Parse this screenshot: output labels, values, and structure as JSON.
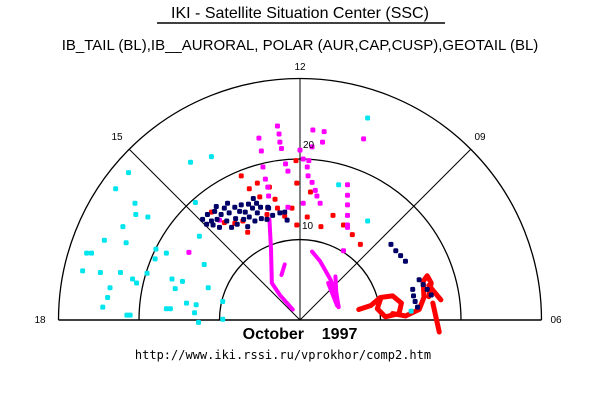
{
  "title": "IKI - Satellite Situation Center (SSC)",
  "legend": [
    {
      "text": "IB_TAIL",
      "color": "#ff0000"
    },
    {
      "text": " (BL),",
      "color": "#000000"
    },
    {
      "text": "IB__AURORAL, ",
      "color": "#00e5ee"
    },
    {
      "text": "POLAR",
      "color": "#ff00ff"
    },
    {
      "text": " (AUR,CAP,CUSP),",
      "color": "#000000"
    },
    {
      "text": "GEOTAIL",
      "color": "#000066"
    },
    {
      "text": " (BL)",
      "color": "#000000"
    }
  ],
  "date_label": "October    1997",
  "url": "http://www.iki.rssi.ru/vprokhor/comp2.htm",
  "chart_data": {
    "type": "scatter",
    "projection": "polar-half (cartesian chart units, x toward 06 MLT, y toward 12 MLT)",
    "mlt_labels": {
      "left": "18",
      "upper_left": "15",
      "top": "12",
      "upper_right": "09",
      "right": "06"
    },
    "radial_labels": [
      "10",
      "20"
    ],
    "rings": [
      10,
      20,
      30
    ],
    "series": [
      {
        "name": "IB_TAIL",
        "color": "#ff0000",
        "points": [
          [
            -7.3,
            17.9
          ],
          [
            -5.3,
            17
          ],
          [
            -6.3,
            16.3
          ],
          [
            -3.8,
            16.5
          ],
          [
            -5,
            15.3
          ],
          [
            -3.1,
            15
          ],
          [
            -0.4,
            17
          ],
          [
            -4,
            13.9
          ],
          [
            -1,
            13.9
          ],
          [
            -2.8,
            13.9
          ],
          [
            -4.1,
            13.1
          ],
          [
            -1.9,
            12.9
          ],
          [
            -9.4,
            12.1
          ],
          [
            -8.1,
            12
          ],
          [
            -7.1,
            12.3
          ],
          [
            -6.5,
            10.9
          ],
          [
            -0.4,
            11.8
          ],
          [
            -11,
            13.4
          ],
          [
            1.3,
            15.9
          ],
          [
            0.9,
            12.8
          ],
          [
            4.1,
            13
          ],
          [
            2.6,
            11.6
          ],
          [
            5.4,
            11.8
          ],
          [
            6.5,
            10.6
          ],
          [
            7.5,
            9.4
          ],
          [
            -0.5,
            19.8
          ]
        ],
        "tracks": [
          [
            [
              7.3,
              1.3
            ],
            [
              8.8,
              1.8
            ],
            [
              10,
              2.8
            ],
            [
              11.5,
              3
            ],
            [
              12.6,
              2.1
            ],
            [
              12.3,
              0.8
            ],
            [
              10.6,
              0.4
            ],
            [
              9.6,
              1.4
            ],
            [
              10,
              2.6
            ]
          ],
          [
            [
              11.5,
              0.8
            ],
            [
              13.1,
              0.5
            ],
            [
              14.8,
              1.3
            ],
            [
              15.4,
              2.8
            ],
            [
              15.3,
              4.8
            ],
            [
              15.8,
              5.5
            ],
            [
              16.3,
              4.6
            ],
            [
              16,
              2.9
            ]
          ],
          [
            [
              16,
              4.3
            ],
            [
              17.5,
              2.5
            ]
          ],
          [
            [
              16.5,
              2.1
            ],
            [
              17.3,
              -1.5
            ]
          ]
        ]
      },
      {
        "name": "IB__AURORAL",
        "color": "#00e5ee",
        "points": [
          [
            -13.6,
            19.6
          ],
          [
            -11,
            20.3
          ],
          [
            -21.3,
            18.3
          ],
          [
            -22.9,
            16.3
          ],
          [
            -20.5,
            14.5
          ],
          [
            -20.4,
            13.1
          ],
          [
            -18.9,
            12.8
          ],
          [
            -22,
            11.6
          ],
          [
            -13,
            14.6
          ],
          [
            -24.3,
            9.9
          ],
          [
            -21.6,
            9.6
          ],
          [
            -12.5,
            10.4
          ],
          [
            -26.5,
            8.3
          ],
          [
            -25.9,
            8.3
          ],
          [
            -17.9,
            8.8
          ],
          [
            -18,
            7.6
          ],
          [
            -16.6,
            8.3
          ],
          [
            -11.9,
            6.9
          ],
          [
            -27,
            6.1
          ],
          [
            -24.8,
            5.9
          ],
          [
            -22.3,
            5.9
          ],
          [
            -19,
            5.8
          ],
          [
            -20.8,
            5.1
          ],
          [
            -20.3,
            4.6
          ],
          [
            -15.9,
            5.1
          ],
          [
            -14.6,
            4.8
          ],
          [
            -23.6,
            4
          ],
          [
            -15.5,
            3.9
          ],
          [
            -11.4,
            4
          ],
          [
            -23.9,
            2.8
          ],
          [
            -24.5,
            1.6
          ],
          [
            -14.1,
            2.1
          ],
          [
            -12.9,
            1.9
          ],
          [
            -16.6,
            1.4
          ],
          [
            -16.1,
            1.4
          ],
          [
            -13.1,
            0.9
          ],
          [
            -9.6,
            2.3
          ],
          [
            -21.5,
            0.6
          ],
          [
            -21.1,
            0.6
          ],
          [
            -12.6,
            -0.3
          ],
          [
            -9.6,
            0.1
          ],
          [
            8.4,
            25.1
          ],
          [
            4.8,
            16.8
          ],
          [
            8.4,
            12.3
          ],
          [
            13.8,
            1.1
          ]
        ],
        "tracks": []
      },
      {
        "name": "POLAR",
        "color": "#ff00ff",
        "points": [
          [
            -2.8,
            24.1
          ],
          [
            -2.6,
            23.1
          ],
          [
            -2.5,
            22.1
          ],
          [
            -5.1,
            22.6
          ],
          [
            -4.8,
            21
          ],
          [
            -2.3,
            21.3
          ],
          [
            -4.6,
            19
          ],
          [
            -1.8,
            19.4
          ],
          [
            -1.5,
            18.5
          ],
          [
            -4.3,
            17.5
          ],
          [
            -4,
            16.5
          ],
          [
            -3.9,
            15.4
          ],
          [
            -1.5,
            14
          ],
          [
            -10,
            12.4
          ],
          [
            -13.8,
            8.4
          ],
          [
            1.6,
            23.6
          ],
          [
            3,
            23.4
          ],
          [
            2.8,
            22.1
          ],
          [
            1.5,
            21.5
          ],
          [
            0,
            21.1
          ],
          [
            0.4,
            20
          ],
          [
            1.1,
            19.8
          ],
          [
            0.9,
            19
          ],
          [
            1,
            17.9
          ],
          [
            1.5,
            17.1
          ],
          [
            1.9,
            16.1
          ],
          [
            2.1,
            15.4
          ],
          [
            0.4,
            14.5
          ],
          [
            2.5,
            14.5
          ],
          [
            7.9,
            22.5
          ],
          [
            5.4,
            8.6
          ],
          [
            5.9,
            16.8
          ],
          [
            5.9,
            15.5
          ],
          [
            5.9,
            14.3
          ],
          [
            5.9,
            13
          ],
          [
            5.9,
            11.8
          ],
          [
            5.9,
            11.5
          ]
        ],
        "tracks": [
          [
            [
              -3.8,
              12.5
            ],
            [
              -3.6,
              8.8
            ],
            [
              -3.5,
              4.6
            ],
            [
              -2.5,
              3.1
            ],
            [
              -0.9,
              1.3
            ]
          ],
          [
            [
              -1.9,
              6.9
            ],
            [
              -2.3,
              5.6
            ]
          ],
          [
            [
              1.5,
              8.5
            ],
            [
              2.5,
              7.3
            ],
            [
              3.8,
              5
            ],
            [
              4.4,
              3.5
            ],
            [
              4.8,
              1.6
            ]
          ],
          [
            [
              4.4,
              5.4
            ],
            [
              4.5,
              3.5
            ],
            [
              4.8,
              1.6
            ]
          ],
          [
            [
              3.5,
              4.6
            ],
            [
              4.6,
              1.8
            ]
          ]
        ]
      },
      {
        "name": "GEOTAIL",
        "color": "#000066",
        "points": [
          [
            -12.1,
            12.5
          ],
          [
            -11.5,
            13.1
          ],
          [
            -11,
            12.3
          ],
          [
            -10.6,
            13.5
          ],
          [
            -10.3,
            12.5
          ],
          [
            -10,
            11.5
          ],
          [
            -9.8,
            13.1
          ],
          [
            -9.4,
            13.9
          ],
          [
            -9.1,
            12.3
          ],
          [
            -8.8,
            13.3
          ],
          [
            -8.5,
            11.5
          ],
          [
            -8.1,
            14
          ],
          [
            -8,
            12.6
          ],
          [
            -7.5,
            13.5
          ],
          [
            -7.3,
            14.3
          ],
          [
            -7,
            12.5
          ],
          [
            -6.8,
            13.4
          ],
          [
            -6.4,
            14.4
          ],
          [
            -6.3,
            12.8
          ],
          [
            -5.9,
            13.9
          ],
          [
            -5.6,
            12.3
          ],
          [
            -5.4,
            14.5
          ],
          [
            -5.3,
            13.3
          ],
          [
            -4.9,
            14
          ],
          [
            -4.8,
            12.6
          ],
          [
            -5.8,
            15.1
          ],
          [
            -10.8,
            11.8
          ],
          [
            -11.6,
            11.9
          ],
          [
            -9,
            14.5
          ],
          [
            -7.8,
            11.9
          ],
          [
            -6.5,
            11.6
          ],
          [
            -10.4,
            14.1
          ],
          [
            -4,
            14
          ],
          [
            -3.4,
            13
          ],
          [
            -1.9,
            13.4
          ],
          [
            -1.6,
            12.4
          ],
          [
            -4.1,
            12.5
          ],
          [
            -3.9,
            13.9
          ],
          [
            -2.5,
            13.3
          ],
          [
            11.3,
            9.4
          ],
          [
            11.9,
            8.6
          ],
          [
            12.5,
            8
          ],
          [
            13.1,
            7.3
          ],
          [
            14,
            3.8
          ],
          [
            14.1,
            3
          ],
          [
            14.3,
            2.3
          ],
          [
            14.6,
            1.6
          ],
          [
            14.8,
            5
          ],
          [
            15.3,
            4.4
          ],
          [
            15.8,
            3.8
          ],
          [
            16.3,
            3.1
          ]
        ],
        "tracks": []
      }
    ]
  }
}
